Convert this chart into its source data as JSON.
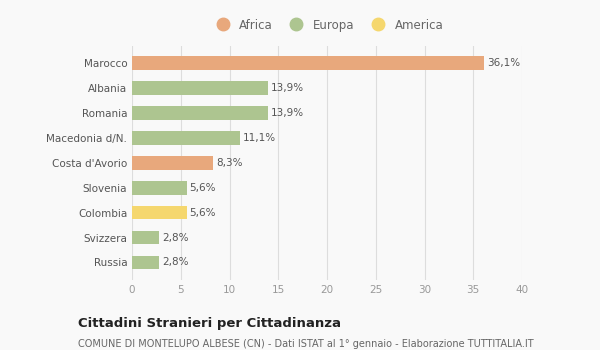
{
  "categories": [
    "Russia",
    "Svizzera",
    "Colombia",
    "Slovenia",
    "Costa d'Avorio",
    "Macedonia d/N.",
    "Romania",
    "Albania",
    "Marocco"
  ],
  "values": [
    2.8,
    2.8,
    5.6,
    5.6,
    8.3,
    11.1,
    13.9,
    13.9,
    36.1
  ],
  "labels": [
    "2,8%",
    "2,8%",
    "5,6%",
    "5,6%",
    "8,3%",
    "11,1%",
    "13,9%",
    "13,9%",
    "36,1%"
  ],
  "colors": [
    "#adc590",
    "#adc590",
    "#f5d76e",
    "#adc590",
    "#e8a87c",
    "#adc590",
    "#adc590",
    "#adc590",
    "#e8a87c"
  ],
  "legend": [
    {
      "label": "Africa",
      "color": "#e8a87c"
    },
    {
      "label": "Europa",
      "color": "#adc590"
    },
    {
      "label": "America",
      "color": "#f5d76e"
    }
  ],
  "xlim": [
    0,
    40
  ],
  "xticks": [
    0,
    5,
    10,
    15,
    20,
    25,
    30,
    35,
    40
  ],
  "title": "Cittadini Stranieri per Cittadinanza",
  "subtitle": "COMUNE DI MONTELUPO ALBESE (CN) - Dati ISTAT al 1° gennaio - Elaborazione TUTTITALIA.IT",
  "background_color": "#f9f9f9",
  "bar_height": 0.55,
  "label_fontsize": 7.5,
  "title_fontsize": 9.5,
  "subtitle_fontsize": 7,
  "tick_fontsize": 7.5,
  "legend_fontsize": 8.5
}
